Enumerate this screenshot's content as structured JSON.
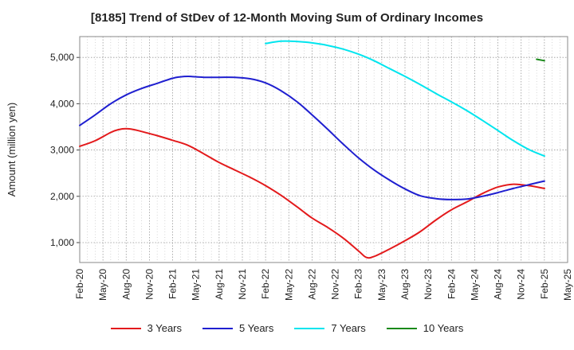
{
  "chart_data": {
    "type": "line",
    "title": "[8185]  Trend of StDev of 12-Month Moving Sum of Ordinary Incomes",
    "xlabel": "",
    "ylabel": "Amount (million yen)",
    "x_ticks": [
      "Feb-20",
      "May-20",
      "Aug-20",
      "Nov-20",
      "Feb-21",
      "May-21",
      "Aug-21",
      "Nov-21",
      "Feb-22",
      "May-22",
      "Aug-22",
      "Nov-22",
      "Feb-23",
      "May-23",
      "Aug-23",
      "Nov-23",
      "Feb-24",
      "May-24",
      "Aug-24",
      "Nov-24",
      "Feb-25",
      "May-25"
    ],
    "y_ticks": [
      1000,
      2000,
      3000,
      4000,
      5000
    ],
    "y_tick_labels": [
      "1,000",
      "2,000",
      "3,000",
      "4,000",
      "5,000"
    ],
    "xlim": [
      0,
      63
    ],
    "ylim": [
      570,
      5450
    ],
    "grid": true,
    "legend_position": "bottom",
    "series": [
      {
        "name": "3 Years",
        "color": "#e31a1c",
        "x": [
          0,
          2,
          4,
          5,
          6,
          7,
          8,
          10,
          12,
          14,
          16,
          18,
          20,
          22,
          24,
          26,
          28,
          30,
          32,
          34,
          36,
          37,
          38,
          40,
          42,
          44,
          46,
          48,
          50,
          52,
          54,
          56,
          58,
          60
        ],
        "values": [
          3080,
          3200,
          3380,
          3440,
          3460,
          3440,
          3400,
          3310,
          3210,
          3100,
          2920,
          2730,
          2570,
          2410,
          2230,
          2020,
          1780,
          1530,
          1330,
          1100,
          820,
          680,
          700,
          860,
          1040,
          1240,
          1490,
          1710,
          1880,
          2060,
          2200,
          2260,
          2230,
          2170
        ]
      },
      {
        "name": "5 Years",
        "color": "#1f1fd0",
        "x": [
          0,
          2,
          4,
          6,
          8,
          10,
          12,
          13,
          14,
          16,
          18,
          20,
          22,
          24,
          26,
          28,
          30,
          32,
          34,
          36,
          38,
          40,
          42,
          44,
          46,
          48,
          50,
          52,
          54,
          56,
          58,
          60
        ],
        "values": [
          3530,
          3760,
          4000,
          4190,
          4330,
          4440,
          4550,
          4580,
          4590,
          4570,
          4570,
          4570,
          4540,
          4450,
          4280,
          4050,
          3760,
          3450,
          3130,
          2830,
          2570,
          2350,
          2160,
          2010,
          1950,
          1930,
          1940,
          2000,
          2080,
          2170,
          2250,
          2330
        ]
      },
      {
        "name": "7 Years",
        "color": "#00e5ee",
        "x": [
          24,
          26,
          28,
          30,
          32,
          34,
          36,
          38,
          40,
          42,
          44,
          46,
          48,
          50,
          52,
          54,
          56,
          58,
          60
        ],
        "values": [
          5300,
          5350,
          5345,
          5315,
          5260,
          5180,
          5070,
          4930,
          4760,
          4590,
          4410,
          4220,
          4040,
          3850,
          3640,
          3420,
          3200,
          3010,
          2870
        ]
      },
      {
        "name": "10 Years",
        "color": "#1a8a1a",
        "x": [
          59,
          60
        ],
        "values": [
          4960,
          4930
        ]
      }
    ]
  }
}
